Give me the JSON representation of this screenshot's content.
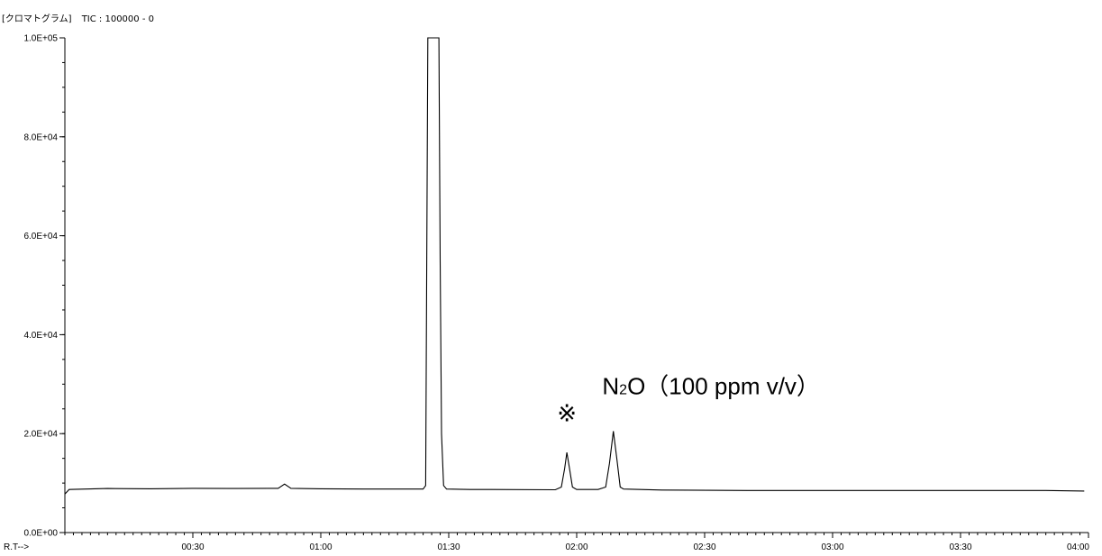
{
  "header": {
    "title": "[クロマトグラム]",
    "tic": "TIC : 100000 - 0"
  },
  "annotations": {
    "mark": "※",
    "compound": "N2O（100 ppm v/v）"
  },
  "chart_data": {
    "type": "line",
    "title": "",
    "xlabel": "R.T-->",
    "ylabel": "",
    "x_unit": "min:sec",
    "xlim": [
      0,
      240
    ],
    "ylim": [
      0,
      100000
    ],
    "grid": false,
    "line_color": "#000000",
    "y_ticks": [
      {
        "value": 0,
        "label": "0.0E+00"
      },
      {
        "value": 20000,
        "label": "2.0E+04"
      },
      {
        "value": 40000,
        "label": "4.0E+04"
      },
      {
        "value": 60000,
        "label": "6.0E+04"
      },
      {
        "value": 80000,
        "label": "8.0E+04"
      },
      {
        "value": 100000,
        "label": "1.0E+05"
      }
    ],
    "x_ticks": [
      {
        "value": 30,
        "label": "00:30"
      },
      {
        "value": 60,
        "label": "01:00"
      },
      {
        "value": 90,
        "label": "01:30"
      },
      {
        "value": 120,
        "label": "02:00"
      },
      {
        "value": 150,
        "label": "02:30"
      },
      {
        "value": 180,
        "label": "03:00"
      },
      {
        "value": 210,
        "label": "03:30"
      },
      {
        "value": 240,
        "label": "04:00"
      }
    ],
    "series": [
      {
        "points": [
          [
            0,
            7800
          ],
          [
            1,
            8700
          ],
          [
            10,
            8900
          ],
          [
            20,
            8850
          ],
          [
            30,
            8950
          ],
          [
            40,
            8900
          ],
          [
            48,
            8950
          ],
          [
            50,
            8950
          ],
          [
            51.5,
            9800
          ],
          [
            53,
            8950
          ],
          [
            60,
            8850
          ],
          [
            70,
            8800
          ],
          [
            84,
            8800
          ],
          [
            84.6,
            9500
          ],
          [
            85.1,
            100000
          ],
          [
            87.7,
            100000
          ],
          [
            88,
            55000
          ],
          [
            88.3,
            20000
          ],
          [
            88.8,
            9500
          ],
          [
            89.5,
            8800
          ],
          [
            95,
            8700
          ],
          [
            100,
            8700
          ],
          [
            115,
            8650
          ],
          [
            116.4,
            9200
          ],
          [
            117.2,
            13000
          ],
          [
            117.7,
            16200
          ],
          [
            118.3,
            13000
          ],
          [
            119,
            9200
          ],
          [
            120,
            8700
          ],
          [
            125,
            8700
          ],
          [
            126.8,
            9200
          ],
          [
            127.7,
            14000
          ],
          [
            128.6,
            20500
          ],
          [
            129.4,
            15000
          ],
          [
            130.2,
            9200
          ],
          [
            131,
            8800
          ],
          [
            140,
            8600
          ],
          [
            160,
            8500
          ],
          [
            180,
            8500
          ],
          [
            200,
            8500
          ],
          [
            220,
            8500
          ],
          [
            230,
            8500
          ],
          [
            239,
            8400
          ]
        ]
      }
    ],
    "annotation_anchors": [
      {
        "text_key": "mark",
        "x": 117.7,
        "y": 22500
      },
      {
        "text_key": "compound",
        "x": 126,
        "y": 28000
      }
    ]
  }
}
